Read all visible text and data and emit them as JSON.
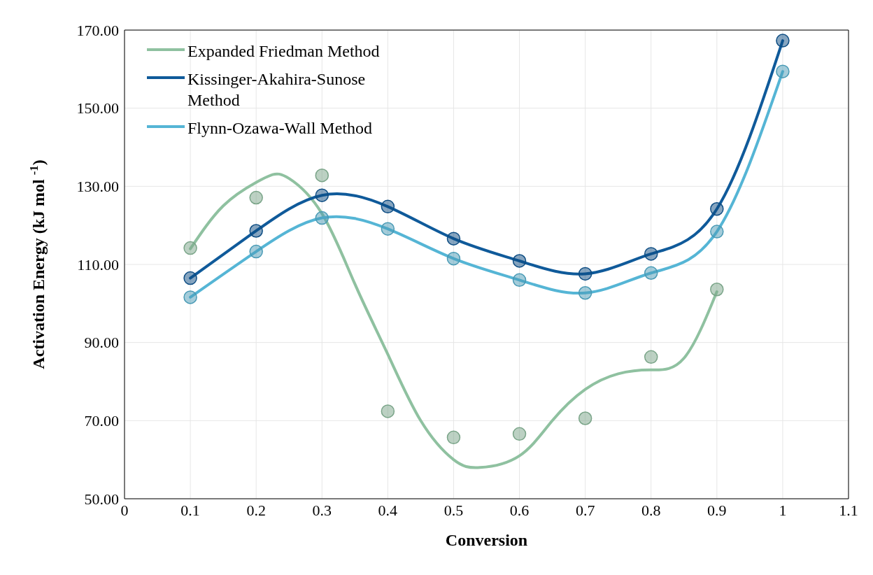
{
  "chart_data": {
    "type": "line",
    "xlabel": "Conversion",
    "ylabel": "Activation Energy (kJ mol $^{-1}$)",
    "xlim": [
      0,
      1.1
    ],
    "xticks": [
      0,
      0.1,
      0.2,
      0.3,
      0.4,
      0.5,
      0.6,
      0.7,
      0.8,
      0.9,
      1,
      1.1
    ],
    "ylim": [
      50,
      170
    ],
    "yticks": [
      {
        "value": 50,
        "label": "50.00"
      },
      {
        "value": 70,
        "label": "70.00"
      },
      {
        "value": 90,
        "label": "90.00"
      },
      {
        "value": 110,
        "label": "110.00"
      },
      {
        "value": 130,
        "label": "130.00"
      },
      {
        "value": 150,
        "label": "150.00"
      },
      {
        "value": 170,
        "label": "170.00"
      }
    ],
    "grid": true,
    "legend": "top left",
    "series": [
      {
        "name": "Expanded Friedman Method",
        "type": "line",
        "marker": "none",
        "color": "#8fc1a0",
        "x": [
          0.1,
          0.15,
          0.2,
          0.225,
          0.25,
          0.3,
          0.35,
          0.4,
          0.45,
          0.5,
          0.54,
          0.6,
          0.65,
          0.7,
          0.75,
          0.8,
          0.85,
          0.9
        ],
        "values": [
          114,
          125,
          131,
          133,
          132,
          123,
          105,
          87,
          70,
          60,
          58,
          61,
          70,
          78,
          82,
          83,
          86,
          103
        ]
      },
      {
        "name": "Kissinger-Akahira-Sunose Method",
        "type": "line",
        "marker": "circle",
        "color": "#0f5a9a",
        "x": [
          0.1,
          0.2,
          0.3,
          0.4,
          0.5,
          0.6,
          0.7,
          0.8,
          0.9,
          1
        ],
        "values": [
          106.5,
          118.6,
          127.7,
          124.8,
          116.6,
          110.9,
          107.6,
          112.7,
          124.2,
          167.3
        ]
      },
      {
        "name": "Flynn-Ozawa-Wall Method",
        "type": "line",
        "marker": "circle",
        "color": "#55b5d5",
        "x": [
          0.1,
          0.2,
          0.3,
          0.4,
          0.5,
          0.6,
          0.7,
          0.8,
          0.9,
          1
        ],
        "values": [
          101.6,
          113.3,
          121.9,
          119.1,
          111.5,
          106,
          102.7,
          107.8,
          118.4,
          159.4
        ]
      },
      {
        "type": "scatter",
        "marker": "circle",
        "color": "#8fc1a0",
        "x": [
          0.1,
          0.2,
          0.3,
          0.4,
          0.5,
          0.6,
          0.7,
          0.8,
          0.9
        ],
        "values": [
          114.2,
          127.1,
          132.8,
          72.4,
          65.7,
          66.6,
          70.6,
          86.3,
          103.6
        ]
      }
    ]
  }
}
